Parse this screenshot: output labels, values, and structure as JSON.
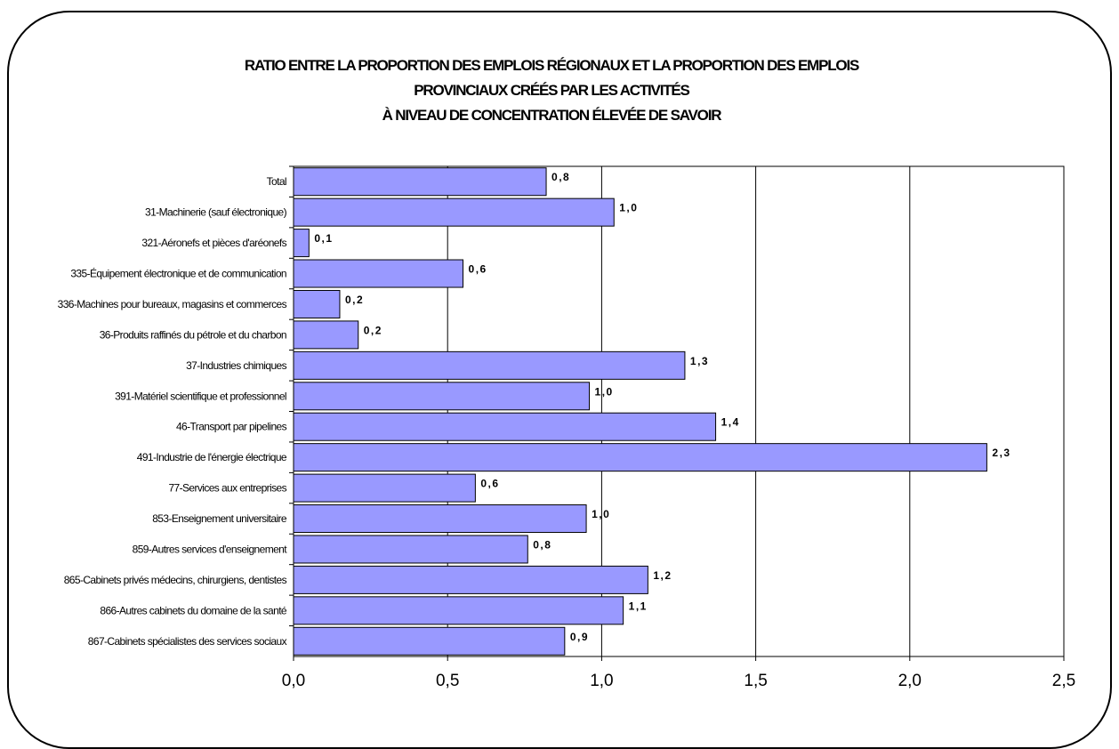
{
  "chart_data": {
    "type": "bar",
    "orientation": "horizontal",
    "title_lines": [
      "RATIO ENTRE LA PROPORTION DES EMPLOIS RÉGIONAUX ET LA PROPORTION DES EMPLOIS",
      "PROVINCIAUX CRÉÉS PAR LES ACTIVITÉS",
      "À NIVEAU DE CONCENTRATION ÉLEVÉE DE SAVOIR"
    ],
    "categories": [
      "Total",
      "31-Machinerie (sauf électronique)",
      "321-Aéronefs et pièces d'aréonefs",
      "335-Équipement électronique et de communication",
      "336-Machines pour bureaux, magasins et commerces",
      "36-Produits raffinés du pétrole et du charbon",
      "37-Industries chimiques",
      "391-Matériel scientifique et professionnel",
      "46-Transport par pipelines",
      "491-Industrie de l'énergie électrique",
      "77-Services aux entreprises",
      "853-Enseignement universitaire",
      "859-Autres services d'enseignement",
      "865-Cabinets privés médecins, chirurgiens, dentistes",
      "866-Autres cabinets du domaine de la santé",
      "867-Cabinets spécialistes des services sociaux"
    ],
    "values": [
      0.82,
      1.04,
      0.05,
      0.55,
      0.15,
      0.21,
      1.27,
      0.96,
      1.37,
      2.25,
      0.59,
      0.95,
      0.76,
      1.15,
      1.07,
      0.88
    ],
    "value_labels": [
      "0,8",
      "1,0",
      "0,1",
      "0,6",
      "0,2",
      "0,2",
      "1,3",
      "1,0",
      "1,4",
      "2,3",
      "0,6",
      "1,0",
      "0,8",
      "1,2",
      "1,1",
      "0,9"
    ],
    "x_ticks": [
      "0,0",
      "0,5",
      "1,0",
      "1,5",
      "2,0",
      "2,5"
    ],
    "xlim": [
      0,
      2.5
    ],
    "grid": "vertical",
    "bar_color": "#9999ff",
    "bar_edge_color": "#000000"
  }
}
